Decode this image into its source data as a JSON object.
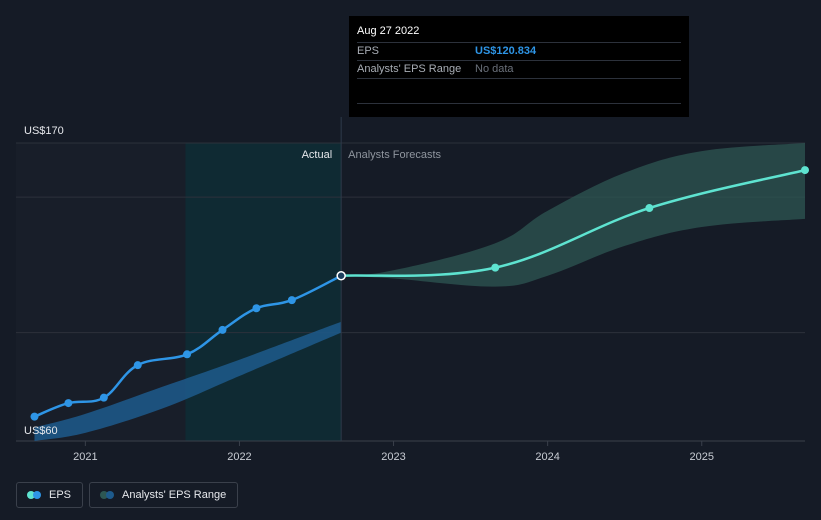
{
  "colors": {
    "background": "#151b26",
    "actual_line": "#2e95e6",
    "forecast_line": "#5ee3d0",
    "actual_band": "#1d5a8c",
    "forecast_band": "#2d5753",
    "highlight_region": "#0f2a33",
    "past_region": "#181e29",
    "grid": "#2c313b"
  },
  "tooltip": {
    "date": "Aug 27 2022",
    "rows": [
      {
        "label": "EPS",
        "value": "US$120.834"
      },
      {
        "label": "Analysts' EPS Range",
        "value": "No data"
      }
    ]
  },
  "regions": {
    "actual_label": "Actual",
    "forecast_label": "Analysts Forecasts"
  },
  "legend": {
    "items": [
      {
        "label": "EPS",
        "icon": "eps-legend-dots"
      },
      {
        "label": "Analysts' EPS Range",
        "icon": "range-legend-dots"
      }
    ]
  },
  "chart_data": {
    "type": "line",
    "title": "",
    "xlabel": "",
    "ylabel": "",
    "y_top_label": "US$170",
    "y_bottom_label": "US$60",
    "ylim": [
      60,
      170
    ],
    "xlim": [
      2020.55,
      2025.67
    ],
    "x_ticks": [
      {
        "value": 2021.0,
        "label": "2021"
      },
      {
        "value": 2022.0,
        "label": "2022"
      },
      {
        "value": 2023.0,
        "label": "2023"
      },
      {
        "value": 2024.0,
        "label": "2024"
      },
      {
        "value": 2025.0,
        "label": "2025"
      }
    ],
    "grid_y_values": [
      170,
      150,
      100
    ],
    "highlight_start": 2021.65,
    "divider_x": 2022.66,
    "series": [
      {
        "name": "EPS",
        "kind": "actual",
        "x": [
          2020.67,
          2020.89,
          2021.12,
          2021.34,
          2021.66,
          2021.89,
          2022.11,
          2022.34,
          2022.66
        ],
        "y": [
          69,
          74,
          76,
          88,
          92,
          101,
          109,
          112,
          121
        ]
      },
      {
        "name": "EPS forecast",
        "kind": "forecast",
        "x": [
          2022.66,
          2023.66,
          2024.66,
          2025.67
        ],
        "y": [
          121,
          124,
          146,
          160
        ]
      }
    ],
    "ranges": [
      {
        "name": "Analysts' EPS Range",
        "kind": "actual",
        "x": [
          2020.67,
          2021.0,
          2021.5,
          2022.0,
          2022.66
        ],
        "low": [
          60,
          63,
          72,
          84,
          100
        ],
        "high": [
          65,
          70,
          80,
          90,
          104
        ]
      },
      {
        "name": "Analysts' EPS Range",
        "kind": "forecast",
        "x": [
          2022.66,
          2023.0,
          2023.66,
          2024.0,
          2024.5,
          2025.0,
          2025.67
        ],
        "low": [
          121,
          120,
          117,
          121,
          132,
          139,
          142
        ],
        "high": [
          121,
          123,
          133,
          145,
          159,
          167,
          170
        ]
      }
    ]
  }
}
